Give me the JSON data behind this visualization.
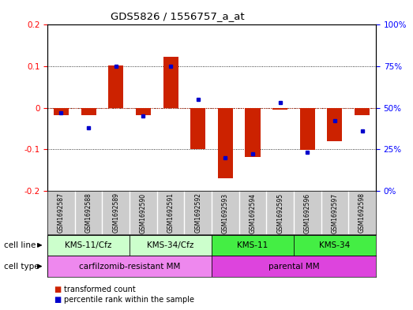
{
  "title": "GDS5826 / 1556757_a_at",
  "samples": [
    "GSM1692587",
    "GSM1692588",
    "GSM1692589",
    "GSM1692590",
    "GSM1692591",
    "GSM1692592",
    "GSM1692593",
    "GSM1692594",
    "GSM1692595",
    "GSM1692596",
    "GSM1692597",
    "GSM1692598"
  ],
  "transformed_count": [
    -0.018,
    -0.018,
    0.102,
    -0.018,
    0.122,
    -0.1,
    -0.17,
    -0.118,
    -0.005,
    -0.102,
    -0.08,
    -0.018
  ],
  "percentile_rank": [
    47,
    38,
    75,
    45,
    75,
    55,
    20,
    22,
    53,
    23,
    42,
    36
  ],
  "ylim_left": [
    -0.2,
    0.2
  ],
  "ylim_right": [
    0,
    100
  ],
  "yticks_left": [
    -0.2,
    -0.1,
    0.0,
    0.1,
    0.2
  ],
  "yticks_right": [
    0,
    25,
    50,
    75,
    100
  ],
  "ytick_labels_left": [
    "-0.2",
    "-0.1",
    "0",
    "0.1",
    "0.2"
  ],
  "ytick_labels_right": [
    "0%",
    "25%",
    "50%",
    "75%",
    "100%"
  ],
  "cell_line_groups": [
    {
      "label": "KMS-11/Cfz",
      "start": 0,
      "end": 2,
      "color": "#ccffcc"
    },
    {
      "label": "KMS-34/Cfz",
      "start": 3,
      "end": 5,
      "color": "#ccffcc"
    },
    {
      "label": "KMS-11",
      "start": 6,
      "end": 8,
      "color": "#44ee44"
    },
    {
      "label": "KMS-34",
      "start": 9,
      "end": 11,
      "color": "#44ee44"
    }
  ],
  "cell_type_groups": [
    {
      "label": "carfilzomib-resistant MM",
      "start": 0,
      "end": 5,
      "color": "#ee88ee"
    },
    {
      "label": "parental MM",
      "start": 6,
      "end": 11,
      "color": "#ee44ee"
    }
  ],
  "bar_color": "#cc2200",
  "dot_color": "#0000cc",
  "sample_bg": "#cccccc",
  "bg_color": "#ffffff",
  "legend_items": [
    "transformed count",
    "percentile rank within the sample"
  ],
  "legend_colors": [
    "#cc2200",
    "#0000cc"
  ]
}
